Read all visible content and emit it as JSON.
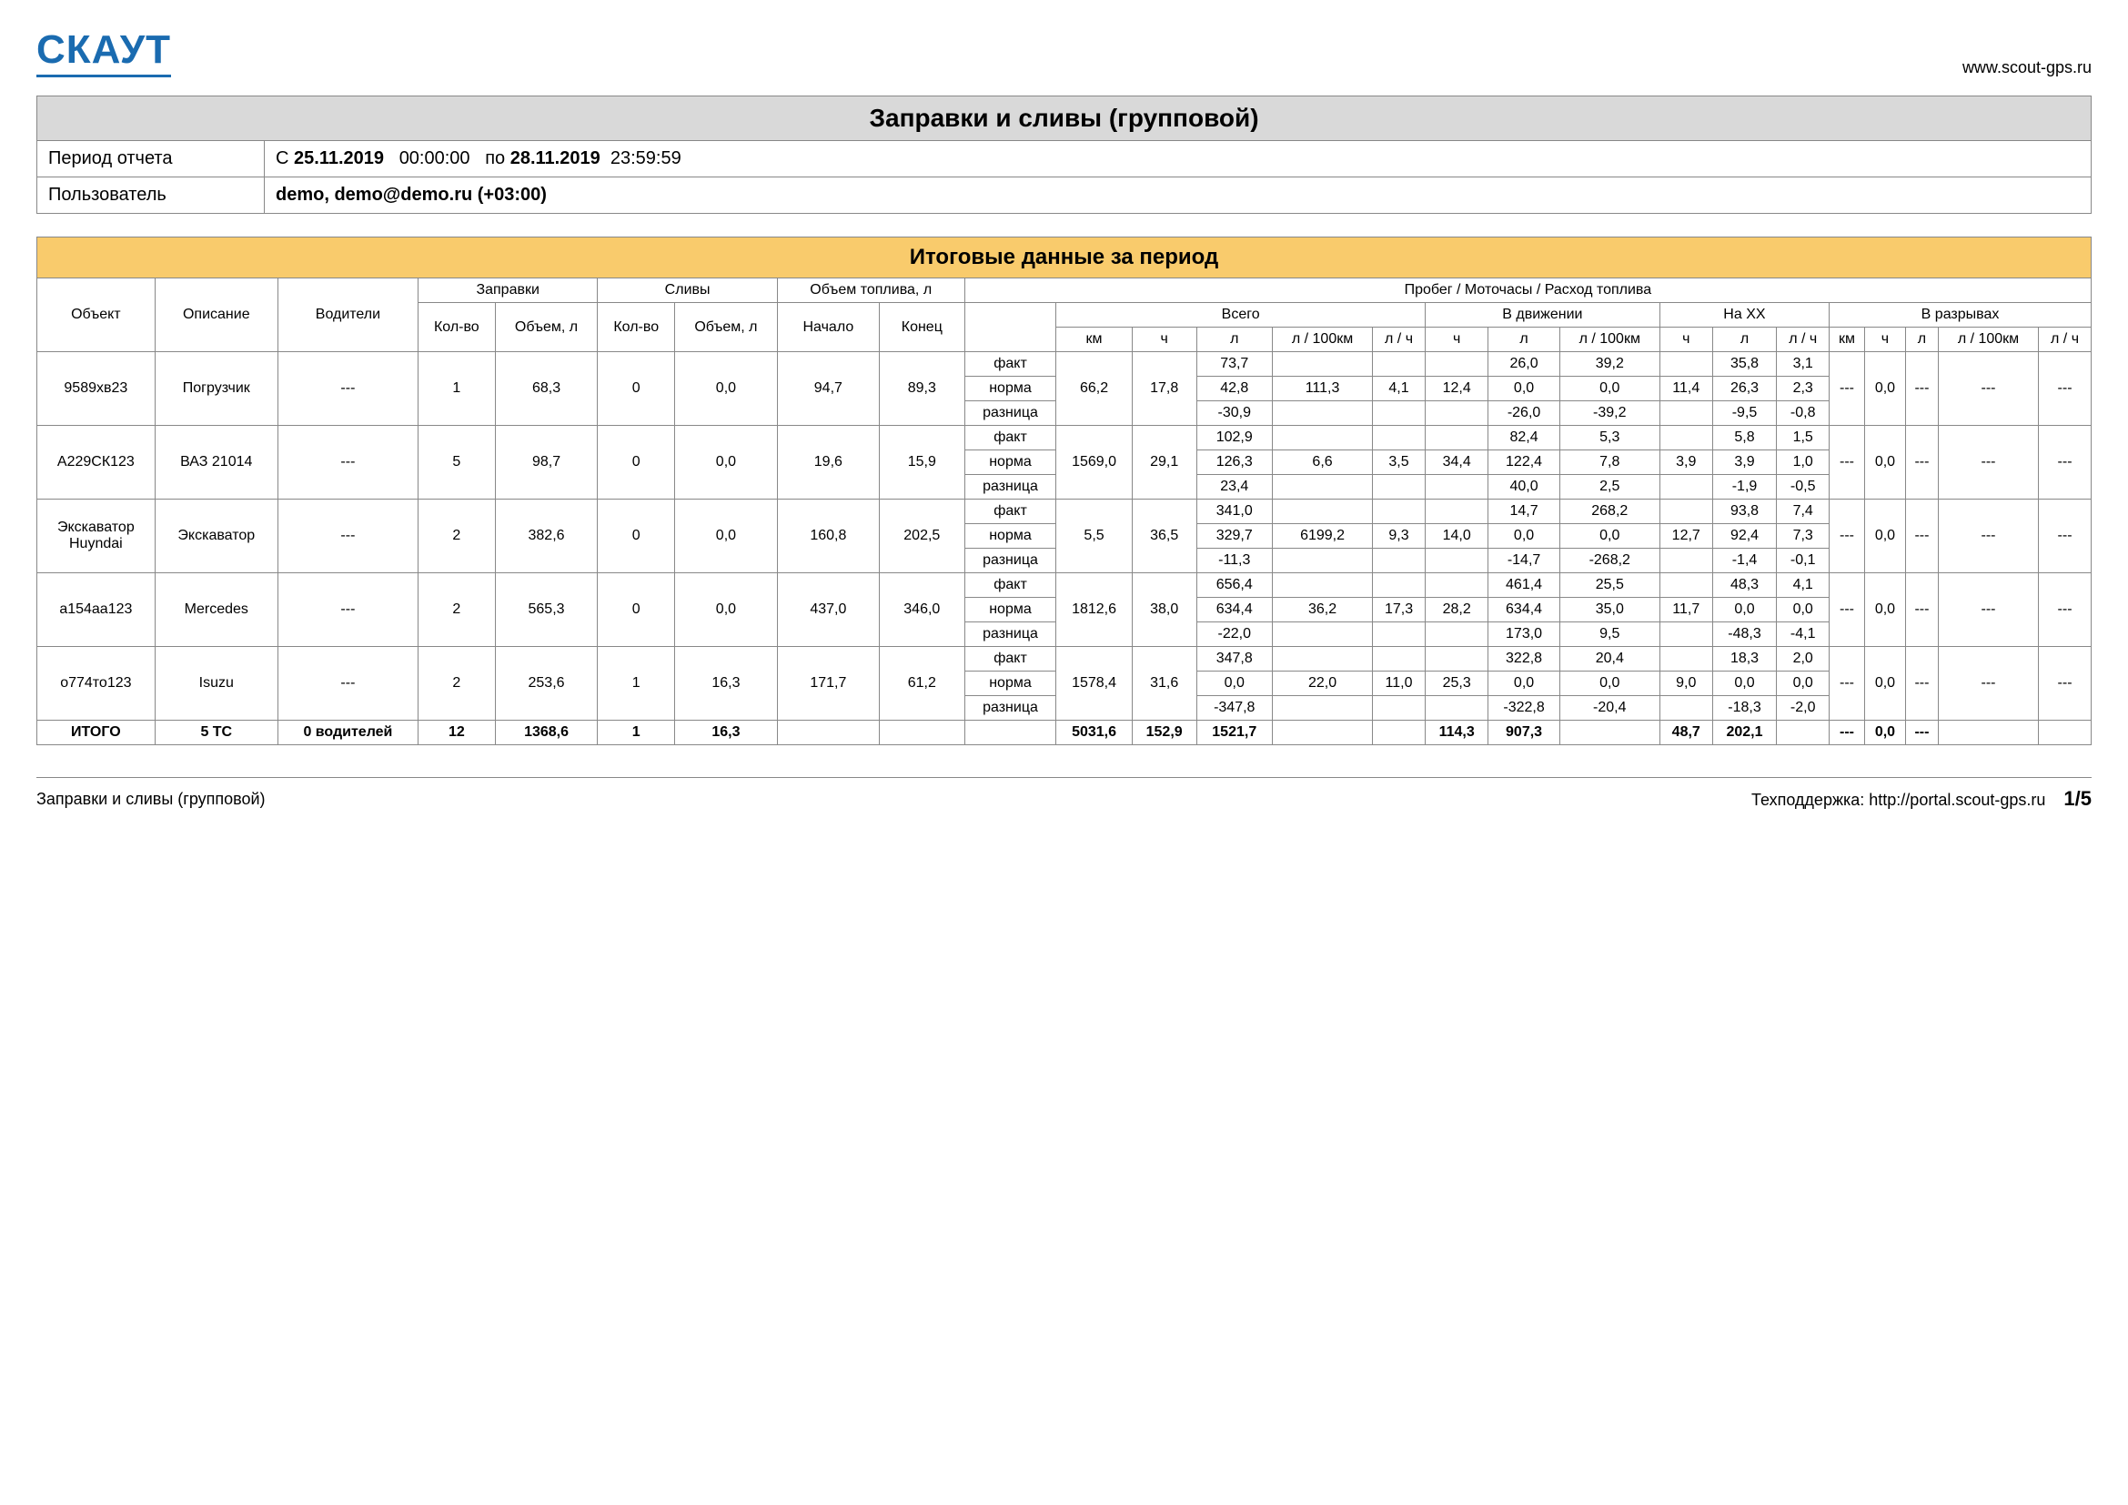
{
  "header": {
    "logo": "СКАУТ",
    "url": "www.scout-gps.ru"
  },
  "meta": {
    "title": "Заправки и сливы (групповой)",
    "period_label": "Период отчета",
    "period_from_prefix": "С",
    "period_from_date": "25.11.2019",
    "period_from_time": "00:00:00",
    "period_to_prefix": "по",
    "period_to_date": "28.11.2019",
    "period_to_time": "23:59:59",
    "user_label": "Пользователь",
    "user_value": "demo, demo@demo.ru (+03:00)"
  },
  "section_title": "Итоговые данные за период",
  "headers": {
    "object": "Объект",
    "description": "Описание",
    "drivers": "Водители",
    "refuels": "Заправки",
    "drains": "Сливы",
    "fuel_volume": "Объем топлива, л",
    "mileage_group": "Пробег / Моточасы / Расход топлива",
    "count": "Кол-во",
    "volume": "Объем, л",
    "start": "Начало",
    "end": "Конец",
    "total": "Всего",
    "moving": "В движении",
    "idle": "На XX",
    "gaps": "В разрывах",
    "km": "км",
    "h": "ч",
    "l": "л",
    "l100": "л / 100км",
    "lh": "л / ч"
  },
  "row_labels": {
    "fact": "факт",
    "norm": "норма",
    "diff": "разница"
  },
  "rows": [
    {
      "object": "9589хв23",
      "desc": "Погрузчик",
      "drivers": "---",
      "ref_cnt": "1",
      "ref_vol": "68,3",
      "dr_cnt": "0",
      "dr_vol": "0,0",
      "start": "94,7",
      "end": "89,3",
      "km": "66,2",
      "h": "17,8",
      "fact": {
        "tl": "73,7",
        "ml": "26,0",
        "m100": "39,2",
        "xl": "35,8",
        "xlh": "3,1"
      },
      "norm": {
        "tl": "42,8",
        "t100": "111,3",
        "tlh": "4,1",
        "mh": "12,4",
        "ml": "0,0",
        "m100": "0,0",
        "xh": "11,4",
        "xl": "26,3",
        "xlh": "2,3",
        "gkm": "---",
        "gh": "0,0",
        "gl": "---",
        "g100": "---",
        "glh": "---"
      },
      "diff": {
        "tl": "-30,9",
        "ml": "-26,0",
        "m100": "-39,2",
        "xl": "-9,5",
        "xlh": "-0,8"
      }
    },
    {
      "object": "А229СК123",
      "desc": "ВАЗ 21014",
      "drivers": "---",
      "ref_cnt": "5",
      "ref_vol": "98,7",
      "dr_cnt": "0",
      "dr_vol": "0,0",
      "start": "19,6",
      "end": "15,9",
      "km": "1569,0",
      "h": "29,1",
      "fact": {
        "tl": "102,9",
        "ml": "82,4",
        "m100": "5,3",
        "xl": "5,8",
        "xlh": "1,5"
      },
      "norm": {
        "tl": "126,3",
        "t100": "6,6",
        "tlh": "3,5",
        "mh": "34,4",
        "ml": "122,4",
        "m100": "7,8",
        "xh": "3,9",
        "xl": "3,9",
        "xlh": "1,0",
        "gkm": "---",
        "gh": "0,0",
        "gl": "---",
        "g100": "---",
        "glh": "---"
      },
      "diff": {
        "tl": "23,4",
        "ml": "40,0",
        "m100": "2,5",
        "xl": "-1,9",
        "xlh": "-0,5"
      }
    },
    {
      "object": "Экскаватор Huyndai",
      "desc": "Экскаватор",
      "drivers": "---",
      "ref_cnt": "2",
      "ref_vol": "382,6",
      "dr_cnt": "0",
      "dr_vol": "0,0",
      "start": "160,8",
      "end": "202,5",
      "km": "5,5",
      "h": "36,5",
      "fact": {
        "tl": "341,0",
        "ml": "14,7",
        "m100": "268,2",
        "xl": "93,8",
        "xlh": "7,4"
      },
      "norm": {
        "tl": "329,7",
        "t100": "6199,2",
        "tlh": "9,3",
        "mh": "14,0",
        "ml": "0,0",
        "m100": "0,0",
        "xh": "12,7",
        "xl": "92,4",
        "xlh": "7,3",
        "gkm": "---",
        "gh": "0,0",
        "gl": "---",
        "g100": "---",
        "glh": "---"
      },
      "diff": {
        "tl": "-11,3",
        "ml": "-14,7",
        "m100": "-268,2",
        "xl": "-1,4",
        "xlh": "-0,1"
      }
    },
    {
      "object": "а154аа123",
      "desc": "Mercedes",
      "drivers": "---",
      "ref_cnt": "2",
      "ref_vol": "565,3",
      "dr_cnt": "0",
      "dr_vol": "0,0",
      "start": "437,0",
      "end": "346,0",
      "km": "1812,6",
      "h": "38,0",
      "fact": {
        "tl": "656,4",
        "ml": "461,4",
        "m100": "25,5",
        "xl": "48,3",
        "xlh": "4,1"
      },
      "norm": {
        "tl": "634,4",
        "t100": "36,2",
        "tlh": "17,3",
        "mh": "28,2",
        "ml": "634,4",
        "m100": "35,0",
        "xh": "11,7",
        "xl": "0,0",
        "xlh": "0,0",
        "gkm": "---",
        "gh": "0,0",
        "gl": "---",
        "g100": "---",
        "glh": "---"
      },
      "diff": {
        "tl": "-22,0",
        "ml": "173,0",
        "m100": "9,5",
        "xl": "-48,3",
        "xlh": "-4,1"
      }
    },
    {
      "object": "о774то123",
      "desc": "Isuzu",
      "drivers": "---",
      "ref_cnt": "2",
      "ref_vol": "253,6",
      "dr_cnt": "1",
      "dr_vol": "16,3",
      "start": "171,7",
      "end": "61,2",
      "km": "1578,4",
      "h": "31,6",
      "fact": {
        "tl": "347,8",
        "ml": "322,8",
        "m100": "20,4",
        "xl": "18,3",
        "xlh": "2,0"
      },
      "norm": {
        "tl": "0,0",
        "t100": "22,0",
        "tlh": "11,0",
        "mh": "25,3",
        "ml": "0,0",
        "m100": "0,0",
        "xh": "9,0",
        "xl": "0,0",
        "xlh": "0,0",
        "gkm": "---",
        "gh": "0,0",
        "gl": "---",
        "g100": "---",
        "glh": "---"
      },
      "diff": {
        "tl": "-347,8",
        "ml": "-322,8",
        "m100": "-20,4",
        "xl": "-18,3",
        "xlh": "-2,0"
      }
    }
  ],
  "totals": {
    "label": "ИТОГО",
    "desc": "5 ТС",
    "drivers": "0 водителей",
    "ref_cnt": "12",
    "ref_vol": "1368,6",
    "dr_cnt": "1",
    "dr_vol": "16,3",
    "km": "5031,6",
    "h": "152,9",
    "tl": "1521,7",
    "mh": "114,3",
    "ml": "907,3",
    "xh": "48,7",
    "xl": "202,1",
    "gkm": "---",
    "gh": "0,0",
    "gl": "---"
  },
  "footer": {
    "left": "Заправки и сливы (групповой)",
    "support": "Техподдержка: http://portal.scout-gps.ru",
    "page": "1/5"
  }
}
